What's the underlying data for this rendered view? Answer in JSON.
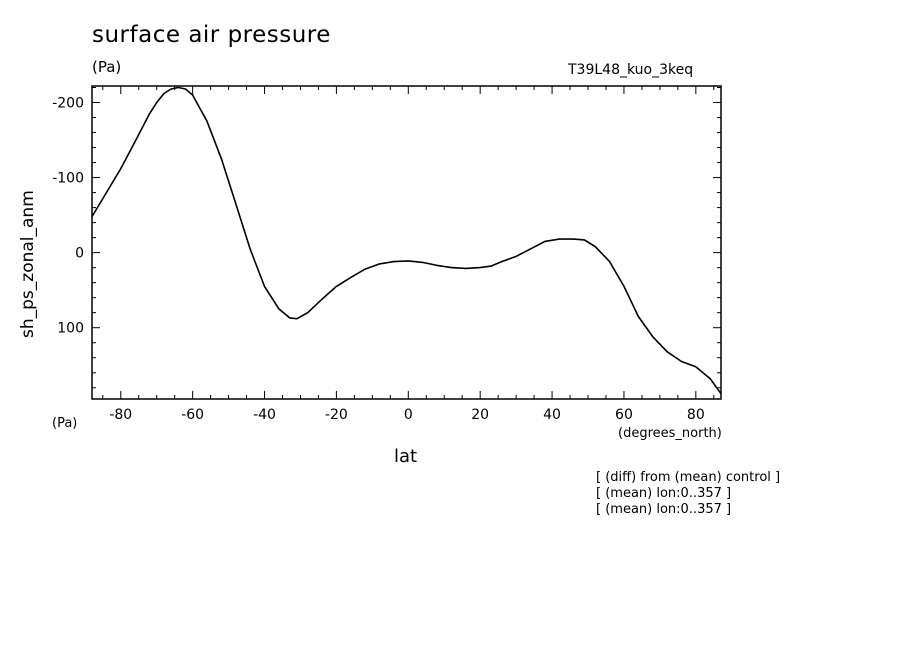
{
  "chart_data": {
    "type": "line",
    "title": "surface air pressure",
    "units": "(Pa)",
    "run_label": "T39L48_kuo_3keq",
    "ylabel": "sh_ps_zonal_anm",
    "yunits": "(Pa)",
    "xlabel": "lat",
    "xunits": "(degrees_north)",
    "xlim": [
      -88,
      87
    ],
    "ylim": [
      195,
      -222
    ],
    "y_inverted": true,
    "xticks": [
      -80,
      -60,
      -40,
      -20,
      0,
      20,
      40,
      60,
      80
    ],
    "yticks": [
      -200,
      -100,
      0,
      100
    ],
    "grid": false,
    "series": [
      {
        "x": [
          -88,
          -84,
          -80,
          -76,
          -72,
          -70,
          -68,
          -66,
          -64,
          -62,
          -60,
          -56,
          -52,
          -48,
          -44,
          -40,
          -36,
          -33,
          -31,
          -28,
          -24,
          -20,
          -16,
          -12,
          -8,
          -4,
          0,
          4,
          8,
          12,
          16,
          20,
          23,
          26,
          30,
          34,
          38,
          42,
          46,
          49,
          52,
          56,
          60,
          64,
          68,
          72,
          76,
          80,
          84,
          87
        ],
        "y": [
          -48,
          -80,
          -112,
          -148,
          -185,
          -200,
          -212,
          -218,
          -220,
          -218,
          -210,
          -175,
          -125,
          -65,
          -5,
          45,
          75,
          87,
          88,
          80,
          62,
          45,
          33,
          22,
          15,
          12,
          11,
          13,
          17,
          20,
          21,
          20,
          18,
          12,
          5,
          -5,
          -15,
          -18,
          -18,
          -17,
          -8,
          12,
          45,
          85,
          112,
          132,
          145,
          152,
          168,
          188
        ]
      }
    ],
    "notes": [
      "[ (diff) from (mean) control ]",
      "[ (mean) lon:0..357 ]",
      "[ (mean) lon:0..357 ]"
    ]
  }
}
